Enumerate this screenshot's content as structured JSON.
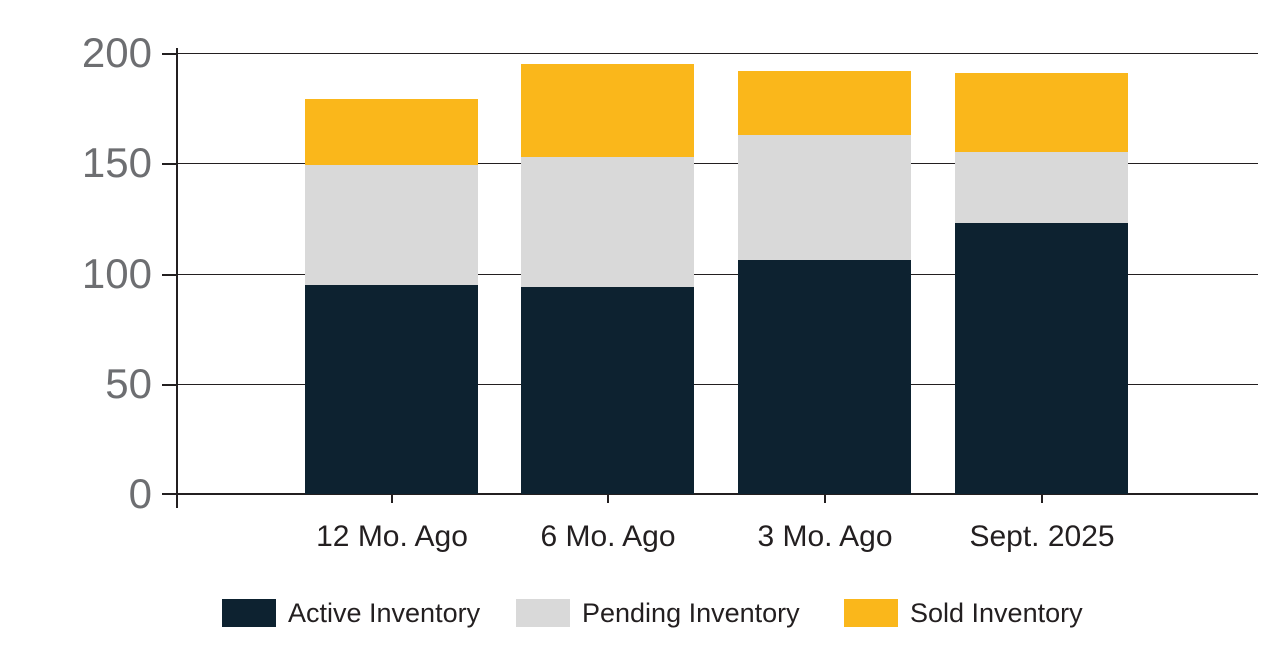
{
  "chart_data": {
    "type": "bar",
    "stacked": true,
    "title": "",
    "categories": [
      "12 Mo. Ago",
      "6 Mo. Ago",
      "3 Mo. Ago",
      "Sept. 2025"
    ],
    "series": [
      {
        "name": "Active Inventory",
        "color": "#0d2230",
        "values": [
          95,
          94,
          106,
          123
        ]
      },
      {
        "name": "Pending Inventory",
        "color": "#d9d9d9",
        "values": [
          54,
          59,
          57,
          32
        ]
      },
      {
        "name": "Sold Inventory",
        "color": "#fab71b",
        "values": [
          30,
          42,
          29,
          36
        ]
      }
    ],
    "totals": [
      179,
      195,
      192,
      191
    ],
    "y_ticks": [
      0,
      50,
      100,
      150,
      200
    ],
    "ylim": [
      0,
      200
    ],
    "xlabel": "",
    "ylabel": "",
    "grid": true,
    "legend_position": "bottom"
  },
  "colors": {
    "background": "#ffffff",
    "axis": "#231f20",
    "grid": "#231f20",
    "y_tick_label": "#6d6e71",
    "x_tick_label": "#231f20",
    "legend_text": "#231f20"
  }
}
